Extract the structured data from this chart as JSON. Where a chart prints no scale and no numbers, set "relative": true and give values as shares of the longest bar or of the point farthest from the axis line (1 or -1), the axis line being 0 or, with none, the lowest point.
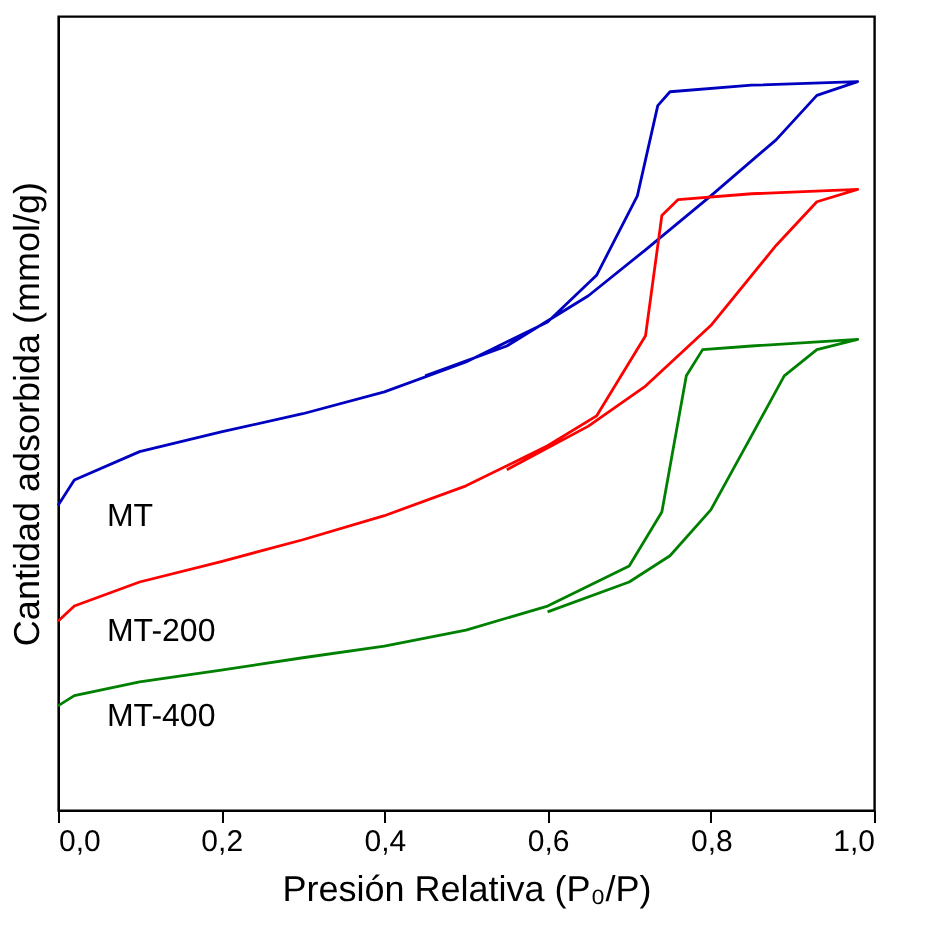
{
  "chart_data": {
    "type": "line",
    "relative": true,
    "xlabel": "Presión Relativa (P₀/P)",
    "ylabel": "Cantidad adsorbida (mmol/g)",
    "xlim": [
      0,
      1
    ],
    "xticks": [
      {
        "value": 0,
        "label": "0,0"
      },
      {
        "value": 0.2,
        "label": "0,2"
      },
      {
        "value": 0.4,
        "label": "0,4"
      },
      {
        "value": 0.6,
        "label": "0,6"
      },
      {
        "value": 0.8,
        "label": "0,8"
      },
      {
        "value": 1,
        "label": "1,0"
      }
    ],
    "grid": false,
    "legend": false,
    "marker": "none",
    "line_style": "solid",
    "series": [
      {
        "name": "MT",
        "color": "#0000c0",
        "x": [
          0,
          0.02,
          0.1,
          0.2,
          0.3,
          0.4,
          0.5,
          0.6,
          0.66,
          0.71,
          0.735,
          0.75,
          0.85,
          0.98,
          0.93,
          0.88,
          0.8,
          0.72,
          0.65,
          0.55,
          0.45
        ],
        "values": [
          0.418,
          0.453,
          0.492,
          0.519,
          0.544,
          0.574,
          0.615,
          0.67,
          0.734,
          0.843,
          0.967,
          0.986,
          0.995,
          1.0,
          0.981,
          0.92,
          0.843,
          0.769,
          0.706,
          0.637,
          0.596
        ]
      },
      {
        "name": "MT-200",
        "color": "#ff0000",
        "x": [
          0,
          0.02,
          0.1,
          0.2,
          0.3,
          0.4,
          0.5,
          0.6,
          0.66,
          0.72,
          0.74,
          0.76,
          0.85,
          0.98,
          0.93,
          0.88,
          0.8,
          0.72,
          0.65,
          0.55
        ],
        "values": [
          0.259,
          0.28,
          0.313,
          0.341,
          0.371,
          0.404,
          0.445,
          0.5,
          0.541,
          0.651,
          0.816,
          0.838,
          0.846,
          0.852,
          0.835,
          0.775,
          0.665,
          0.582,
          0.527,
          0.467
        ]
      },
      {
        "name": "MT-400",
        "color": "#008000",
        "x": [
          0,
          0.02,
          0.1,
          0.2,
          0.3,
          0.4,
          0.5,
          0.6,
          0.7,
          0.74,
          0.77,
          0.79,
          0.85,
          0.98,
          0.93,
          0.89,
          0.85,
          0.8,
          0.75,
          0.7,
          0.6
        ],
        "values": [
          0.143,
          0.157,
          0.176,
          0.192,
          0.209,
          0.225,
          0.247,
          0.28,
          0.335,
          0.409,
          0.596,
          0.632,
          0.637,
          0.646,
          0.632,
          0.596,
          0.514,
          0.412,
          0.349,
          0.313,
          0.272
        ]
      }
    ]
  }
}
